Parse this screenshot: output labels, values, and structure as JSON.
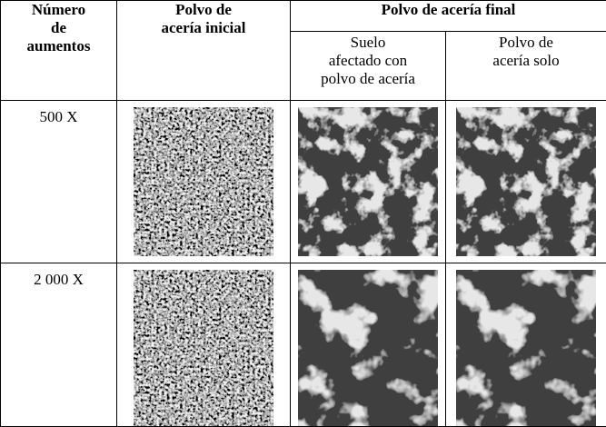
{
  "header": {
    "magnification": [
      "Número",
      "de",
      "aumentos"
    ],
    "initial_dust": [
      "Polvo de",
      "acería inicial"
    ],
    "final_dust": "Polvo de acería final",
    "final_columns": [
      [
        "Suelo",
        "afectado con",
        "polvo de acería"
      ],
      [
        "Polvo de",
        "acería solo"
      ]
    ]
  },
  "rows": [
    {
      "magnification": "500 X"
    },
    {
      "magnification": "2 000 X"
    }
  ]
}
